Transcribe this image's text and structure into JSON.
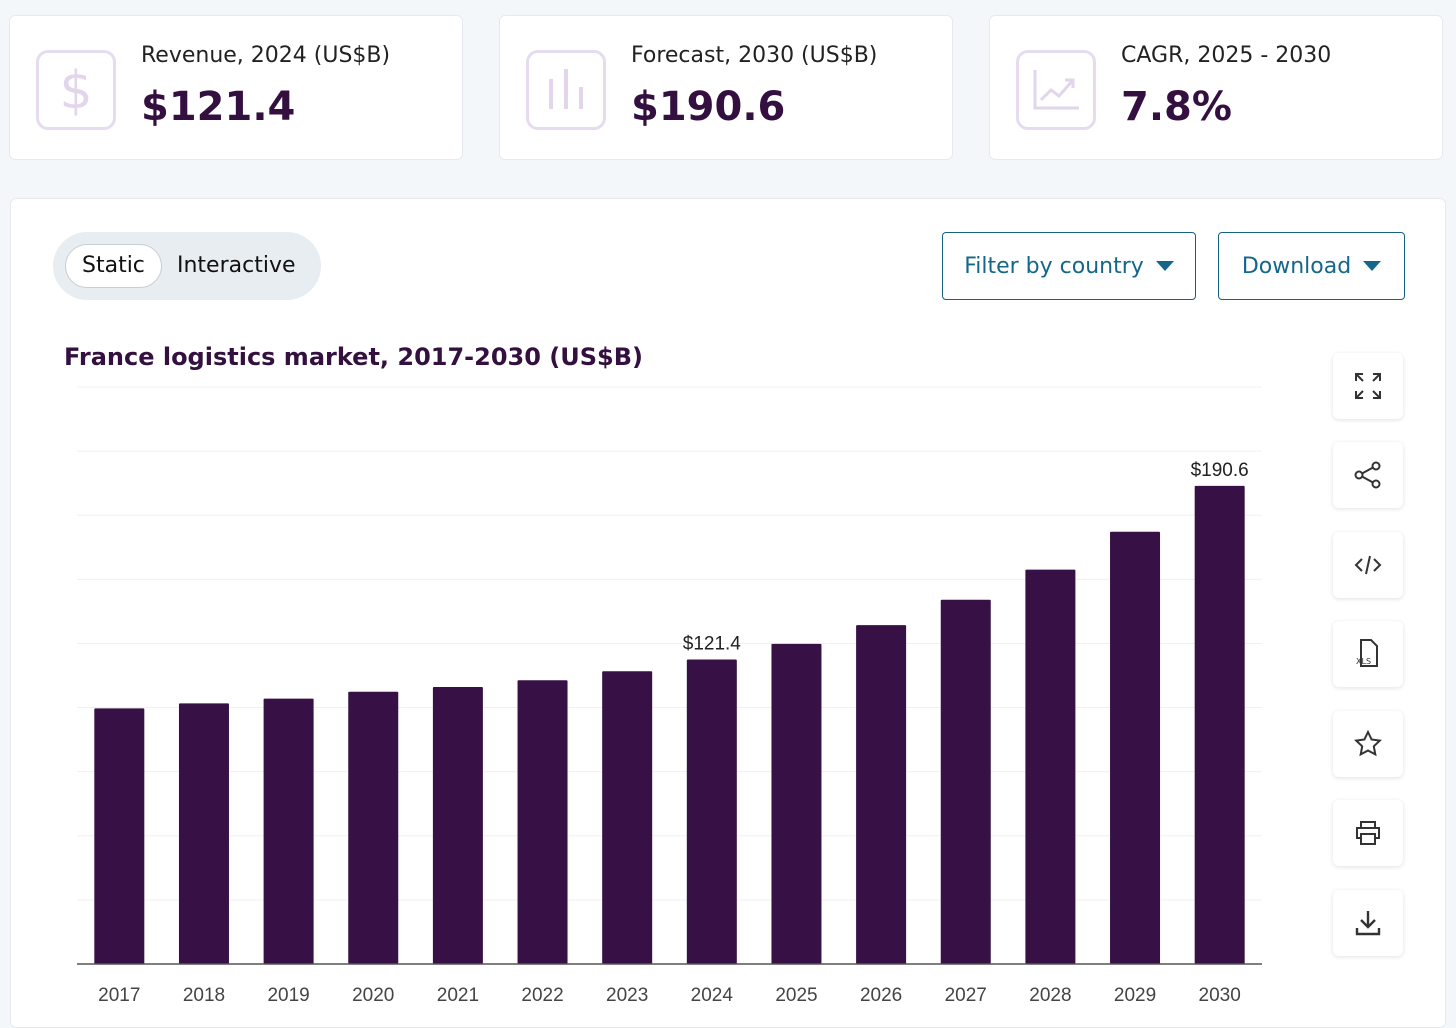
{
  "kpis": [
    {
      "label": "Revenue, 2024 (US$B)",
      "value": "$121.4",
      "icon": "dollar-icon"
    },
    {
      "label": "Forecast, 2030 (US$B)",
      "value": "$190.6",
      "icon": "bar-chart-icon"
    },
    {
      "label": "CAGR, 2025 - 2030",
      "value": "7.8%",
      "icon": "trend-line-icon"
    }
  ],
  "toggle": {
    "static": "Static",
    "interactive": "Interactive",
    "selected": "Static"
  },
  "buttons": {
    "filter": "Filter by country",
    "download": "Download"
  },
  "side_actions": [
    "expand-icon",
    "share-icon",
    "embed-code-icon",
    "xls-file-icon",
    "star-icon",
    "print-icon",
    "download-icon"
  ],
  "xls_label": "XLS",
  "colors": {
    "bar": "#371046",
    "accent": "#14678a",
    "title": "#33103f"
  },
  "chart_data": {
    "type": "bar",
    "title": "France logistics market, 2017-2030 (US$B)",
    "categories": [
      "2017",
      "2018",
      "2019",
      "2020",
      "2021",
      "2022",
      "2023",
      "2024",
      "2025",
      "2026",
      "2027",
      "2028",
      "2029",
      "2030"
    ],
    "values": [
      101.9,
      103.9,
      105.8,
      108.5,
      110.4,
      113.1,
      116.7,
      121.4,
      127.6,
      135.1,
      145.2,
      157.2,
      172.3,
      190.6
    ],
    "data_labels": {
      "2024": "$121.4",
      "2030": "$190.6"
    },
    "ylim": [
      0,
      230
    ],
    "grid": true,
    "legend": "none"
  }
}
